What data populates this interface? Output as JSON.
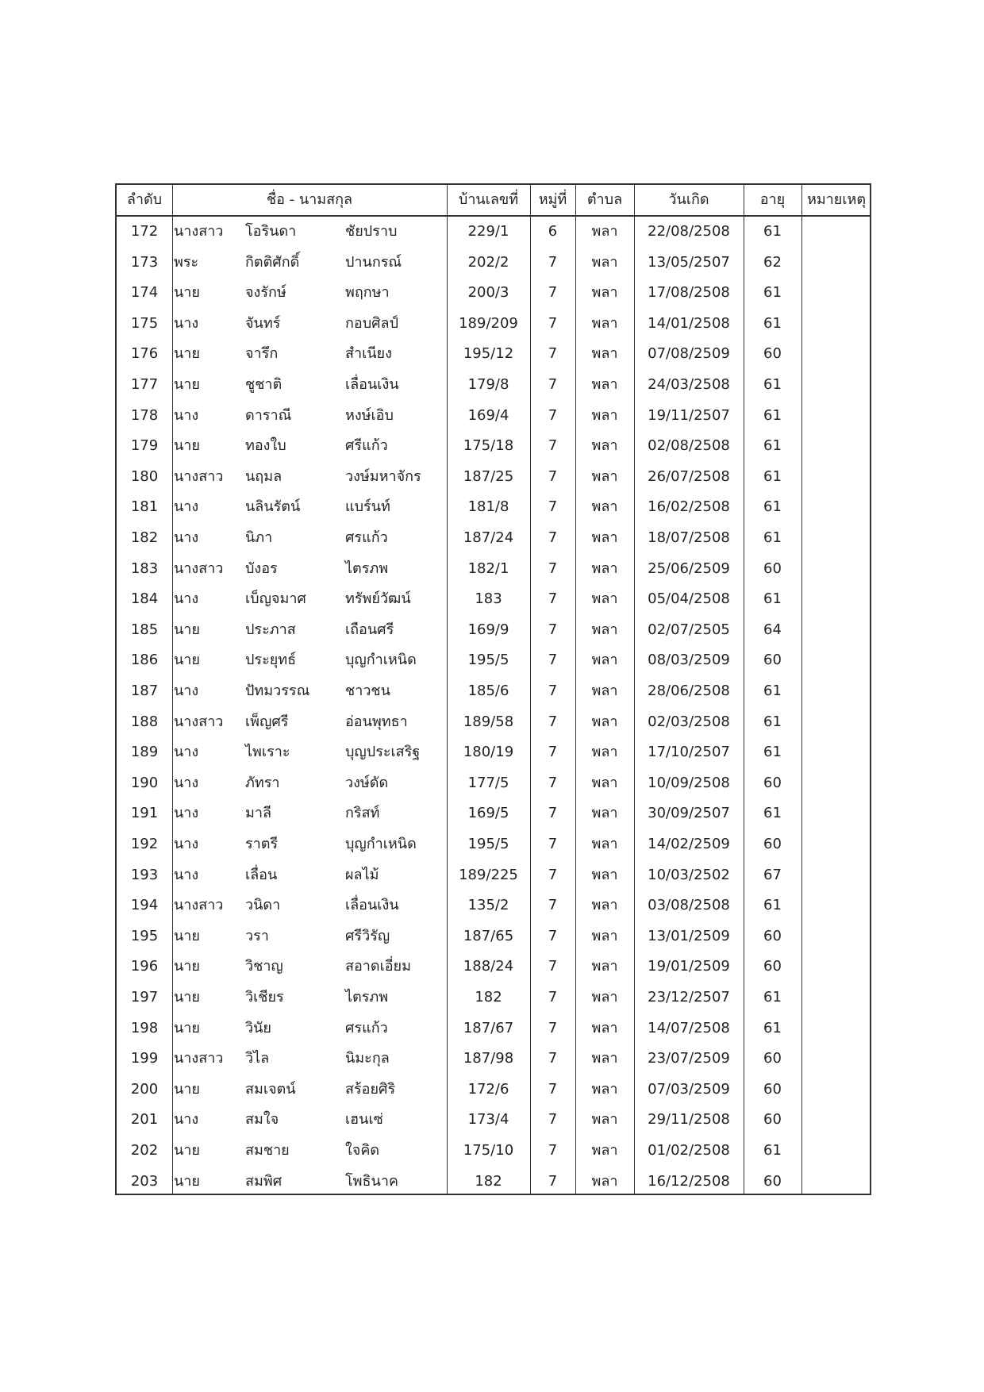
{
  "headers": {
    "no": "ลำดับ",
    "name": "ชื่อ - นามสกุล",
    "house_no": "บ้านเลขที่",
    "moo": "หมู่ที่",
    "tambon": "ตำบล",
    "birth_date": "วันเกิด",
    "age": "อายุ",
    "remark": "หมายเหตุ"
  },
  "rows": [
    {
      "no": "172",
      "title": "นางสาว",
      "first": "โอรินดา",
      "last": "ชัยปราบ",
      "house": "229/1",
      "moo": "6",
      "tambon": "พลา",
      "dob": "22/08/2508",
      "age": "61",
      "remark": ""
    },
    {
      "no": "173",
      "title": "พระ",
      "first": "กิตติศักดิ์",
      "last": "ปานกรณ์",
      "house": "202/2",
      "moo": "7",
      "tambon": "พลา",
      "dob": "13/05/2507",
      "age": "62",
      "remark": ""
    },
    {
      "no": "174",
      "title": "นาย",
      "first": "จงรักษ์",
      "last": "พฤกษา",
      "house": "200/3",
      "moo": "7",
      "tambon": "พลา",
      "dob": "17/08/2508",
      "age": "61",
      "remark": ""
    },
    {
      "no": "175",
      "title": "นาง",
      "first": "จันทร์",
      "last": "กอบศิลป์",
      "house": "189/209",
      "moo": "7",
      "tambon": "พลา",
      "dob": "14/01/2508",
      "age": "61",
      "remark": ""
    },
    {
      "no": "176",
      "title": "นาย",
      "first": "จารึก",
      "last": "สำเนียง",
      "house": "195/12",
      "moo": "7",
      "tambon": "พลา",
      "dob": "07/08/2509",
      "age": "60",
      "remark": ""
    },
    {
      "no": "177",
      "title": "นาย",
      "first": "ชูชาติ",
      "last": "เลื่อนเงิน",
      "house": "179/8",
      "moo": "7",
      "tambon": "พลา",
      "dob": "24/03/2508",
      "age": "61",
      "remark": ""
    },
    {
      "no": "178",
      "title": "นาง",
      "first": "ดาราณี",
      "last": "หงษ์เอิบ",
      "house": "169/4",
      "moo": "7",
      "tambon": "พลา",
      "dob": "19/11/2507",
      "age": "61",
      "remark": ""
    },
    {
      "no": "179",
      "title": "นาย",
      "first": "ทองใบ",
      "last": "ศรีแก้ว",
      "house": "175/18",
      "moo": "7",
      "tambon": "พลา",
      "dob": "02/08/2508",
      "age": "61",
      "remark": ""
    },
    {
      "no": "180",
      "title": "นางสาว",
      "first": "นฤมล",
      "last": "วงษ์มหาจักร",
      "house": "187/25",
      "moo": "7",
      "tambon": "พลา",
      "dob": "26/07/2508",
      "age": "61",
      "remark": ""
    },
    {
      "no": "181",
      "title": "นาง",
      "first": "นลินรัตน์",
      "last": "แบร์นท์",
      "house": "181/8",
      "moo": "7",
      "tambon": "พลา",
      "dob": "16/02/2508",
      "age": "61",
      "remark": ""
    },
    {
      "no": "182",
      "title": "นาง",
      "first": "นิภา",
      "last": "ศรแก้ว",
      "house": "187/24",
      "moo": "7",
      "tambon": "พลา",
      "dob": "18/07/2508",
      "age": "61",
      "remark": ""
    },
    {
      "no": "183",
      "title": "นางสาว",
      "first": "บังอร",
      "last": "ไตรภพ",
      "house": "182/1",
      "moo": "7",
      "tambon": "พลา",
      "dob": "25/06/2509",
      "age": "60",
      "remark": ""
    },
    {
      "no": "184",
      "title": "นาง",
      "first": "เบ็ญจมาศ",
      "last": "ทรัพย์วัฒน์",
      "house": "183",
      "moo": "7",
      "tambon": "พลา",
      "dob": "05/04/2508",
      "age": "61",
      "remark": ""
    },
    {
      "no": "185",
      "title": "นาย",
      "first": "ประภาส",
      "last": "เถือนศรี",
      "house": "169/9",
      "moo": "7",
      "tambon": "พลา",
      "dob": "02/07/2505",
      "age": "64",
      "remark": ""
    },
    {
      "no": "186",
      "title": "นาย",
      "first": "ประยุทธ์",
      "last": "บุญกำเหนิด",
      "house": "195/5",
      "moo": "7",
      "tambon": "พลา",
      "dob": "08/03/2509",
      "age": "60",
      "remark": ""
    },
    {
      "no": "187",
      "title": "นาง",
      "first": "ปัทมวรรณ",
      "last": "ชาวชน",
      "house": "185/6",
      "moo": "7",
      "tambon": "พลา",
      "dob": "28/06/2508",
      "age": "61",
      "remark": ""
    },
    {
      "no": "188",
      "title": "นางสาว",
      "first": "เพ็ญศรี",
      "last": "อ่อนพุทธา",
      "house": "189/58",
      "moo": "7",
      "tambon": "พลา",
      "dob": "02/03/2508",
      "age": "61",
      "remark": ""
    },
    {
      "no": "189",
      "title": "นาง",
      "first": "ไพเราะ",
      "last": "บุญประเสริฐ",
      "house": "180/19",
      "moo": "7",
      "tambon": "พลา",
      "dob": "17/10/2507",
      "age": "61",
      "remark": ""
    },
    {
      "no": "190",
      "title": "นาง",
      "first": "ภัทรา",
      "last": "วงษ์ดัด",
      "house": "177/5",
      "moo": "7",
      "tambon": "พลา",
      "dob": "10/09/2508",
      "age": "60",
      "remark": ""
    },
    {
      "no": "191",
      "title": "นาง",
      "first": "มาลี",
      "last": "กริสท์",
      "house": "169/5",
      "moo": "7",
      "tambon": "พลา",
      "dob": "30/09/2507",
      "age": "61",
      "remark": ""
    },
    {
      "no": "192",
      "title": "นาง",
      "first": "ราตรี",
      "last": "บุญกำเหนิด",
      "house": "195/5",
      "moo": "7",
      "tambon": "พลา",
      "dob": "14/02/2509",
      "age": "60",
      "remark": ""
    },
    {
      "no": "193",
      "title": "นาง",
      "first": "เลื่อน",
      "last": "ผลไม้",
      "house": "189/225",
      "moo": "7",
      "tambon": "พลา",
      "dob": "10/03/2502",
      "age": "67",
      "remark": ""
    },
    {
      "no": "194",
      "title": "นางสาว",
      "first": "วนิดา",
      "last": "เลื่อนเงิน",
      "house": "135/2",
      "moo": "7",
      "tambon": "พลา",
      "dob": "03/08/2508",
      "age": "61",
      "remark": ""
    },
    {
      "no": "195",
      "title": "นาย",
      "first": "วรา",
      "last": "ศรีวิรัญ",
      "house": "187/65",
      "moo": "7",
      "tambon": "พลา",
      "dob": "13/01/2509",
      "age": "60",
      "remark": ""
    },
    {
      "no": "196",
      "title": "นาย",
      "first": "วิชาญ",
      "last": "สอาดเอี่ยม",
      "house": "188/24",
      "moo": "7",
      "tambon": "พลา",
      "dob": "19/01/2509",
      "age": "60",
      "remark": ""
    },
    {
      "no": "197",
      "title": "นาย",
      "first": "วิเชียร",
      "last": "ไตรภพ",
      "house": "182",
      "moo": "7",
      "tambon": "พลา",
      "dob": "23/12/2507",
      "age": "61",
      "remark": ""
    },
    {
      "no": "198",
      "title": "นาย",
      "first": "วินัย",
      "last": "ศรแก้ว",
      "house": "187/67",
      "moo": "7",
      "tambon": "พลา",
      "dob": "14/07/2508",
      "age": "61",
      "remark": ""
    },
    {
      "no": "199",
      "title": "นางสาว",
      "first": "วิไล",
      "last": "นิมะกุล",
      "house": "187/98",
      "moo": "7",
      "tambon": "พลา",
      "dob": "23/07/2509",
      "age": "60",
      "remark": ""
    },
    {
      "no": "200",
      "title": "นาย",
      "first": "สมเจตน์",
      "last": "สร้อยศิริ",
      "house": "172/6",
      "moo": "7",
      "tambon": "พลา",
      "dob": "07/03/2509",
      "age": "60",
      "remark": ""
    },
    {
      "no": "201",
      "title": "นาง",
      "first": "สมใจ",
      "last": "เฮนเซ่",
      "house": "173/4",
      "moo": "7",
      "tambon": "พลา",
      "dob": "29/11/2508",
      "age": "60",
      "remark": ""
    },
    {
      "no": "202",
      "title": "นาย",
      "first": "สมชาย",
      "last": "ใจคิด",
      "house": "175/10",
      "moo": "7",
      "tambon": "พลา",
      "dob": "01/02/2508",
      "age": "61",
      "remark": ""
    },
    {
      "no": "203",
      "title": "นาย",
      "first": "สมพิศ",
      "last": "โพธินาค",
      "house": "182",
      "moo": "7",
      "tambon": "พลา",
      "dob": "16/12/2508",
      "age": "60",
      "remark": ""
    }
  ]
}
